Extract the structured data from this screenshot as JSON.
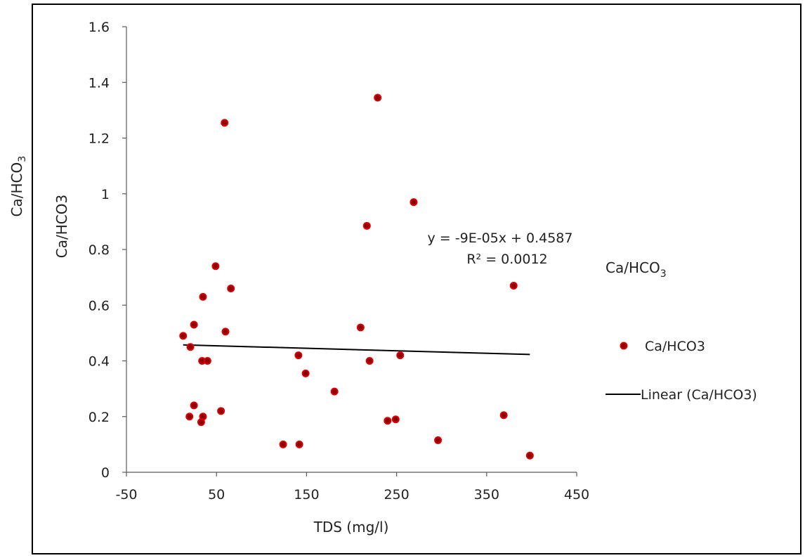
{
  "outer_ylabel": {
    "main": "Ca/HCO",
    "sub": "3"
  },
  "legend_title": {
    "main": "Ca/HCO",
    "sub": "3"
  },
  "colors": {
    "marker_fill": "#8a0000",
    "marker_stroke": "#e00000",
    "trendline": "#000000",
    "axis": "#595959"
  },
  "chart_data": {
    "type": "scatter",
    "title": "",
    "xlabel": "TDS (mg/l)",
    "ylabel": "Ca/HCO3",
    "xlim": [
      -50,
      450
    ],
    "ylim": [
      0,
      1.6
    ],
    "xticks": [
      -50,
      50,
      150,
      250,
      350,
      450
    ],
    "yticks": [
      0,
      0.2,
      0.4,
      0.6,
      0.8,
      1,
      1.2,
      1.4,
      1.6
    ],
    "grid": false,
    "legend_position": "right",
    "series": [
      {
        "name": "Ca/HCO3",
        "x": [
          13,
          20,
          21,
          25,
          25,
          33,
          34,
          35,
          35,
          40,
          49,
          55,
          59,
          60,
          66,
          124,
          141,
          142,
          149,
          181,
          210,
          217,
          220,
          229,
          240,
          249,
          254,
          269,
          296,
          369,
          380,
          398
        ],
        "y": [
          0.49,
          0.2,
          0.45,
          0.53,
          0.24,
          0.18,
          0.4,
          0.63,
          0.2,
          0.4,
          0.74,
          0.22,
          1.255,
          0.505,
          0.66,
          0.1,
          0.42,
          0.1,
          0.355,
          0.29,
          0.52,
          0.885,
          0.4,
          1.345,
          0.185,
          0.19,
          0.42,
          0.97,
          0.115,
          0.205,
          0.67,
          0.06
        ]
      }
    ],
    "trendline": {
      "name": "Linear (Ca/HCO3)",
      "slope": -9e-05,
      "intercept": 0.4587,
      "x_range": [
        13,
        398
      ],
      "equation": "y = -9E-05x + 0.4587",
      "r2": "R² = 0.0012"
    }
  }
}
